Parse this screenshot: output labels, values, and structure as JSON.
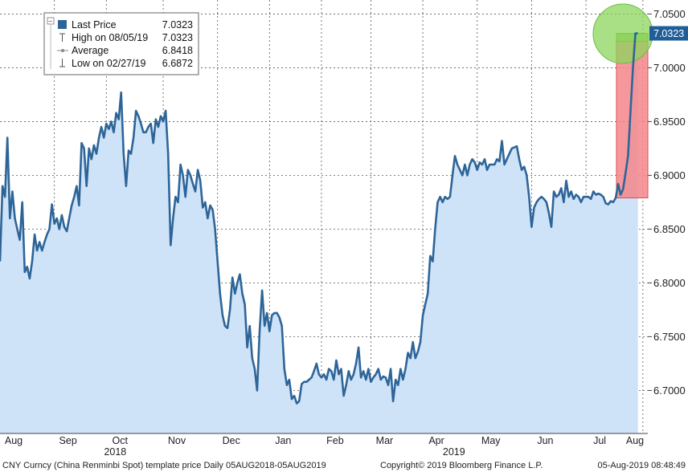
{
  "chart_data": {
    "type": "line",
    "series_name": "Last Price",
    "x_labels": [
      {
        "label": "Aug",
        "idx": 0
      },
      {
        "label": "Sep",
        "idx": 22
      },
      {
        "label": "Oct",
        "idx": 43
      },
      {
        "label": "Nov",
        "idx": 66
      },
      {
        "label": "Dec",
        "idx": 88
      },
      {
        "label": "Jan",
        "idx": 109
      },
      {
        "label": "Feb",
        "idx": 130
      },
      {
        "label": "Mar",
        "idx": 150
      },
      {
        "label": "Apr",
        "idx": 171
      },
      {
        "label": "May",
        "idx": 193
      },
      {
        "label": "Jun",
        "idx": 215
      },
      {
        "label": "Jul",
        "idx": 237
      },
      {
        "label": "Aug",
        "idx": 260
      }
    ],
    "year_labels": [
      {
        "label": "2018",
        "idx": 44
      },
      {
        "label": "2019",
        "idx": 181
      }
    ],
    "yticks": [
      "6.7000",
      "6.7500",
      "6.8000",
      "6.8500",
      "6.9000",
      "6.9500",
      "7.0000",
      "7.0500"
    ],
    "ylim": [
      6.66,
      7.063
    ],
    "xlim": [
      0,
      262
    ],
    "grid": true,
    "last_value_label": "7.0323",
    "points": [
      [
        0,
        6.82
      ],
      [
        1,
        6.89
      ],
      [
        2,
        6.88
      ],
      [
        3,
        6.935
      ],
      [
        4,
        6.86
      ],
      [
        5,
        6.885
      ],
      [
        6,
        6.86
      ],
      [
        7,
        6.85
      ],
      [
        8,
        6.84
      ],
      [
        9,
        6.875
      ],
      [
        10,
        6.81
      ],
      [
        11,
        6.815
      ],
      [
        12,
        6.804
      ],
      [
        13,
        6.82
      ],
      [
        14,
        6.845
      ],
      [
        15,
        6.83
      ],
      [
        16,
        6.838
      ],
      [
        17,
        6.83
      ],
      [
        18,
        6.838
      ],
      [
        19,
        6.845
      ],
      [
        20,
        6.85
      ],
      [
        21,
        6.873
      ],
      [
        22,
        6.855
      ],
      [
        23,
        6.86
      ],
      [
        24,
        6.85
      ],
      [
        25,
        6.863
      ],
      [
        26,
        6.852
      ],
      [
        27,
        6.848
      ],
      [
        28,
        6.86
      ],
      [
        29,
        6.872
      ],
      [
        30,
        6.88
      ],
      [
        31,
        6.89
      ],
      [
        32,
        6.872
      ],
      [
        33,
        6.93
      ],
      [
        34,
        6.925
      ],
      [
        35,
        6.89
      ],
      [
        36,
        6.925
      ],
      [
        37,
        6.915
      ],
      [
        38,
        6.928
      ],
      [
        39,
        6.92
      ],
      [
        40,
        6.935
      ],
      [
        41,
        6.945
      ],
      [
        42,
        6.935
      ],
      [
        43,
        6.948
      ],
      [
        44,
        6.943
      ],
      [
        45,
        6.95
      ],
      [
        46,
        6.94
      ],
      [
        47,
        6.958
      ],
      [
        48,
        6.952
      ],
      [
        49,
        6.977
      ],
      [
        50,
        6.92
      ],
      [
        51,
        6.89
      ],
      [
        52,
        6.923
      ],
      [
        53,
        6.92
      ],
      [
        54,
        6.935
      ],
      [
        55,
        6.96
      ],
      [
        56,
        6.955
      ],
      [
        57,
        6.948
      ],
      [
        58,
        6.94
      ],
      [
        59,
        6.94
      ],
      [
        60,
        6.945
      ],
      [
        61,
        6.948
      ],
      [
        62,
        6.93
      ],
      [
        63,
        6.952
      ],
      [
        64,
        6.945
      ],
      [
        65,
        6.955
      ],
      [
        66,
        6.95
      ],
      [
        67,
        6.96
      ],
      [
        68,
        6.92
      ],
      [
        69,
        6.835
      ],
      [
        70,
        6.86
      ],
      [
        71,
        6.88
      ],
      [
        72,
        6.875
      ],
      [
        73,
        6.91
      ],
      [
        74,
        6.9
      ],
      [
        75,
        6.88
      ],
      [
        76,
        6.905
      ],
      [
        77,
        6.9
      ],
      [
        78,
        6.892
      ],
      [
        79,
        6.885
      ],
      [
        80,
        6.905
      ],
      [
        81,
        6.895
      ],
      [
        82,
        6.87
      ],
      [
        83,
        6.875
      ],
      [
        84,
        6.86
      ],
      [
        85,
        6.872
      ],
      [
        86,
        6.868
      ],
      [
        87,
        6.85
      ],
      [
        88,
        6.82
      ],
      [
        89,
        6.79
      ],
      [
        90,
        6.77
      ],
      [
        91,
        6.76
      ],
      [
        92,
        6.758
      ],
      [
        93,
        6.775
      ],
      [
        94,
        6.805
      ],
      [
        95,
        6.79
      ],
      [
        96,
        6.8
      ],
      [
        97,
        6.808
      ],
      [
        98,
        6.79
      ],
      [
        99,
        6.78
      ],
      [
        100,
        6.74
      ],
      [
        101,
        6.76
      ],
      [
        102,
        6.73
      ],
      [
        103,
        6.72
      ],
      [
        104,
        6.7
      ],
      [
        105,
        6.755
      ],
      [
        106,
        6.793
      ],
      [
        107,
        6.76
      ],
      [
        108,
        6.772
      ],
      [
        109,
        6.755
      ],
      [
        110,
        6.77
      ],
      [
        111,
        6.772
      ],
      [
        112,
        6.772
      ],
      [
        113,
        6.768
      ],
      [
        114,
        6.76
      ],
      [
        115,
        6.72
      ],
      [
        116,
        6.705
      ],
      [
        117,
        6.71
      ],
      [
        118,
        6.692
      ],
      [
        119,
        6.695
      ],
      [
        120,
        6.688
      ],
      [
        121,
        6.69
      ],
      [
        122,
        6.706
      ],
      [
        123,
        6.708
      ],
      [
        124,
        6.708
      ],
      [
        125,
        6.71
      ],
      [
        126,
        6.712
      ],
      [
        127,
        6.718
      ],
      [
        128,
        6.725
      ],
      [
        129,
        6.715
      ],
      [
        130,
        6.712
      ],
      [
        131,
        6.715
      ],
      [
        132,
        6.71
      ],
      [
        133,
        6.72
      ],
      [
        134,
        6.718
      ],
      [
        135,
        6.71
      ],
      [
        136,
        6.728
      ],
      [
        137,
        6.715
      ],
      [
        138,
        6.72
      ],
      [
        139,
        6.695
      ],
      [
        140,
        6.705
      ],
      [
        141,
        6.718
      ],
      [
        142,
        6.71
      ],
      [
        143,
        6.715
      ],
      [
        144,
        6.725
      ],
      [
        145,
        6.74
      ],
      [
        146,
        6.712
      ],
      [
        147,
        6.718
      ],
      [
        148,
        6.71
      ],
      [
        149,
        6.72
      ],
      [
        150,
        6.708
      ],
      [
        151,
        6.712
      ],
      [
        152,
        6.715
      ],
      [
        153,
        6.72
      ],
      [
        154,
        6.71
      ],
      [
        155,
        6.713
      ],
      [
        156,
        6.712
      ],
      [
        157,
        6.705
      ],
      [
        158,
        6.72
      ],
      [
        159,
        6.69
      ],
      [
        160,
        6.71
      ],
      [
        161,
        6.705
      ],
      [
        162,
        6.72
      ],
      [
        163,
        6.71
      ],
      [
        164,
        6.72
      ],
      [
        165,
        6.735
      ],
      [
        166,
        6.73
      ],
      [
        167,
        6.745
      ],
      [
        168,
        6.73
      ],
      [
        169,
        6.736
      ],
      [
        170,
        6.745
      ],
      [
        171,
        6.77
      ],
      [
        172,
        6.78
      ],
      [
        173,
        6.79
      ],
      [
        174,
        6.825
      ],
      [
        175,
        6.82
      ],
      [
        176,
        6.85
      ],
      [
        177,
        6.875
      ],
      [
        178,
        6.88
      ],
      [
        179,
        6.875
      ],
      [
        180,
        6.88
      ],
      [
        181,
        6.878
      ],
      [
        182,
        6.88
      ],
      [
        183,
        6.9
      ],
      [
        184,
        6.918
      ],
      [
        185,
        6.91
      ],
      [
        186,
        6.905
      ],
      [
        187,
        6.9
      ],
      [
        188,
        6.91
      ],
      [
        189,
        6.9
      ],
      [
        190,
        6.91
      ],
      [
        191,
        6.915
      ],
      [
        192,
        6.912
      ],
      [
        193,
        6.905
      ],
      [
        194,
        6.912
      ],
      [
        195,
        6.91
      ],
      [
        196,
        6.915
      ],
      [
        197,
        6.905
      ],
      [
        198,
        6.91
      ],
      [
        199,
        6.91
      ],
      [
        200,
        6.91
      ],
      [
        201,
        6.915
      ],
      [
        202,
        6.913
      ],
      [
        203,
        6.932
      ],
      [
        204,
        6.91
      ],
      [
        205,
        6.915
      ],
      [
        206,
        6.92
      ],
      [
        207,
        6.925
      ],
      [
        208,
        6.926
      ],
      [
        209,
        6.927
      ],
      [
        210,
        6.915
      ],
      [
        211,
        6.905
      ],
      [
        212,
        6.908
      ],
      [
        213,
        6.9
      ],
      [
        214,
        6.88
      ],
      [
        215,
        6.852
      ],
      [
        216,
        6.87
      ],
      [
        217,
        6.875
      ],
      [
        218,
        6.878
      ],
      [
        219,
        6.88
      ],
      [
        220,
        6.878
      ],
      [
        221,
        6.875
      ],
      [
        222,
        6.865
      ],
      [
        223,
        6.852
      ],
      [
        224,
        6.885
      ],
      [
        225,
        6.88
      ],
      [
        226,
        6.882
      ],
      [
        227,
        6.888
      ],
      [
        228,
        6.875
      ],
      [
        229,
        6.895
      ],
      [
        230,
        6.88
      ],
      [
        231,
        6.885
      ],
      [
        232,
        6.878
      ],
      [
        233,
        6.882
      ],
      [
        234,
        6.88
      ],
      [
        235,
        6.875
      ],
      [
        236,
        6.88
      ],
      [
        237,
        6.88
      ],
      [
        238,
        6.88
      ],
      [
        239,
        6.878
      ],
      [
        240,
        6.885
      ],
      [
        241,
        6.882
      ],
      [
        242,
        6.883
      ],
      [
        243,
        6.882
      ],
      [
        244,
        6.88
      ],
      [
        245,
        6.874
      ],
      [
        246,
        6.873
      ],
      [
        247,
        6.876
      ],
      [
        248,
        6.875
      ],
      [
        249,
        6.879
      ],
      [
        250,
        6.892
      ],
      [
        251,
        6.882
      ],
      [
        252,
        6.887
      ],
      [
        253,
        6.902
      ],
      [
        254,
        6.918
      ],
      [
        255,
        6.96
      ],
      [
        256,
        7.0
      ],
      [
        257,
        7.032
      ],
      [
        258,
        7.032
      ]
    ]
  },
  "legend": {
    "rows": [
      {
        "label": "Last Price",
        "value": "7.0323"
      },
      {
        "label": "High on 08/05/19",
        "value": "7.0323"
      },
      {
        "label": "Average",
        "value": "6.8418"
      },
      {
        "label": "Low on 02/27/19",
        "value": "6.6872"
      }
    ],
    "collapse_symbol": "−"
  },
  "footer": {
    "left": "CNY Curncy (China Renminbi Spot) template price  Daily 05AUG2018-05AUG2019",
    "center": "Copyright© 2019 Bloomberg Finance L.P.",
    "right": "05-Aug-2019 08:48:49"
  },
  "colors": {
    "line": "#2e6598",
    "area": "#cfe3f8",
    "grid": "#555555",
    "last_label_bg": "#1f5e99",
    "highlight_red": "#f4868a",
    "highlight_green": "#8cd65c"
  }
}
